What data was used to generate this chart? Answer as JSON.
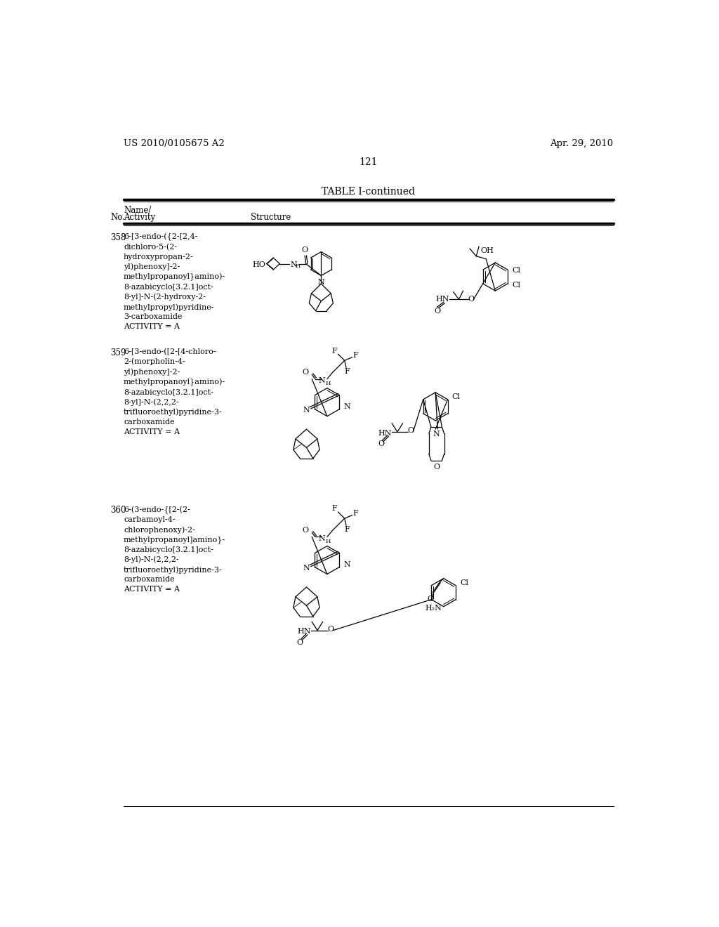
{
  "page_number": "121",
  "header_left": "US 2010/0105675 A2",
  "header_right": "Apr. 29, 2010",
  "table_title": "TABLE I-continued",
  "background_color": "#ffffff",
  "text_color": "#000000",
  "entry358_no": "358",
  "entry358_name": "6-[3-endo-({2-[2,4-\ndichloro-5-(2-\nhydroxypropan-2-\nyl)phenoxy]-2-\nmethylpropanoyl}amino)-\n8-azabicyclo[3.2.1]oct-\n8-yl]-N-(2-hydroxy-2-\nmethylpropyl)pyridine-\n3-carboxamide\nACTIVITY = A",
  "entry359_no": "359",
  "entry359_name": "6-[3-endo-([2-[4-chloro-\n2-(morpholin-4-\nyl)phenoxy]-2-\nmethylpropanoyl}amino)-\n8-azabicyclo[3.2.1]oct-\n8-yl]-N-(2,2,2-\ntrifluoroethyl)pyridine-3-\ncarboxamide\nACTIVITY = A",
  "entry360_no": "360",
  "entry360_name": "6-(3-endo-{[2-(2-\ncarbamoyl-4-\nchlorophenoxy)-2-\nmethylpropanoyl]amino}-\n8-azabicyclo[3.2.1]oct-\n8-yl)-N-(2,2,2-\ntrifluoroethyl)pyridine-3-\ncarboxamide\nACTIVITY = A"
}
